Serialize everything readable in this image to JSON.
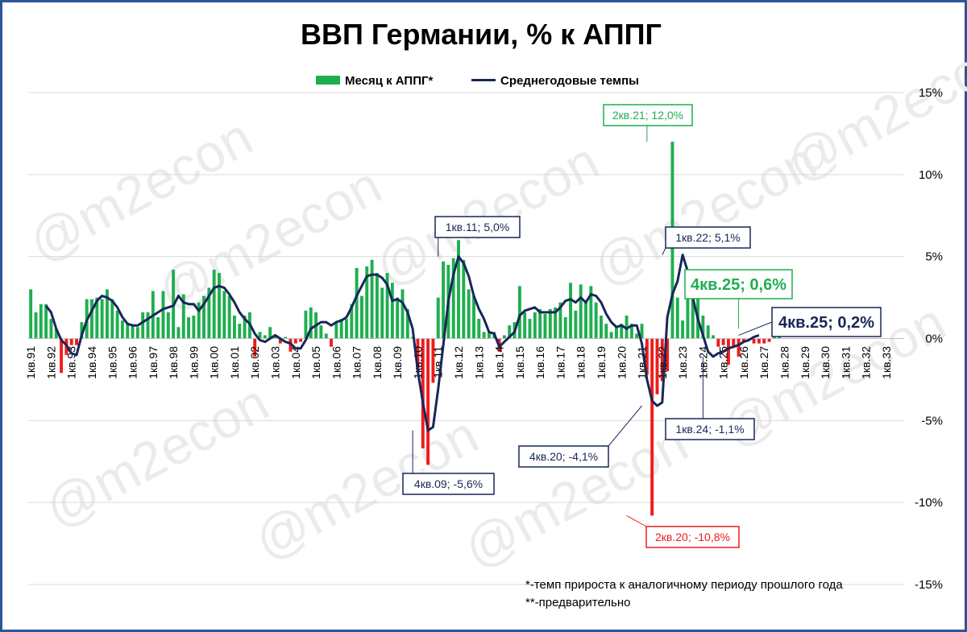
{
  "chart_data": {
    "type": "bar",
    "title": "ВВП Германии, % к АППГ",
    "legend_position": "top-center",
    "ylim": [
      -15,
      15
    ],
    "y_ticks": [
      "15%",
      "10%",
      "5%",
      "0%",
      "-5%",
      "-10%",
      "-15%"
    ],
    "y_tick_values": [
      15,
      10,
      5,
      0,
      -5,
      -10,
      -15
    ],
    "grid": true,
    "x_tick_labels": [
      "1кв.91",
      "1кв.92",
      "1кв.93",
      "1кв.94",
      "1кв.95",
      "1кв.96",
      "1кв.97",
      "1кв.98",
      "1кв.99",
      "1кв.00",
      "1кв.01",
      "1кв.02",
      "1кв.03",
      "1кв.04",
      "1кв.05",
      "1кв.06",
      "1кв.07",
      "1кв.08",
      "1кв.09",
      "1кв.10",
      "1кв.11",
      "1кв.12",
      "1кв.13",
      "1кв.14",
      "1кв.15",
      "1кв.16",
      "1кв.17",
      "1кв.18",
      "1кв.19",
      "1кв.20",
      "1кв.21",
      "1кв.22",
      "1кв.23",
      "1кв.24",
      "1кв.25",
      "1кв.26",
      "1кв.27",
      "1кв.28",
      "1кв.29",
      "1кв.30",
      "1кв.31",
      "1кв.32",
      "1кв.33"
    ],
    "x_start": "1кв.91",
    "series": [
      {
        "name": "Месяц к АППГ*",
        "kind": "bar",
        "color_positive": "#1fae4f",
        "color_negative": "#ee1c1c",
        "values": [
          3.0,
          1.6,
          2.1,
          2.1,
          1.2,
          0.6,
          -2.1,
          -1.0,
          -0.4,
          -0.4,
          1.0,
          2.4,
          2.4,
          2.5,
          2.4,
          3.0,
          2.4,
          1.7,
          1.1,
          0.9,
          0.8,
          0.7,
          1.6,
          1.6,
          2.9,
          1.3,
          2.9,
          1.6,
          4.2,
          0.7,
          2.7,
          1.3,
          1.4,
          2.2,
          2.6,
          3.1,
          4.2,
          4.0,
          2.9,
          2.6,
          1.4,
          0.9,
          1.4,
          1.6,
          -1.1,
          0.4,
          0.2,
          0.7,
          0.2,
          -0.3,
          0.1,
          -0.8,
          -0.3,
          -0.2,
          1.7,
          1.9,
          1.6,
          0.8,
          0.3,
          -0.5,
          1.0,
          1.2,
          1.2,
          2.1,
          4.3,
          2.6,
          4.4,
          4.8,
          4.0,
          3.1,
          4.0,
          3.4,
          2.5,
          3.0,
          1.8,
          0.1,
          -1.9,
          -6.7,
          -7.7,
          -2.7,
          2.5,
          4.7,
          4.5,
          4.9,
          6.0,
          4.8,
          3.0,
          2.6,
          1.2,
          0.4,
          0.4,
          0.4,
          -0.8,
          0.2,
          0.8,
          1.0,
          3.2,
          1.6,
          1.2,
          1.6,
          1.8,
          1.5,
          1.8,
          1.9,
          2.2,
          1.3,
          3.4,
          1.7,
          3.3,
          2.2,
          3.2,
          2.2,
          1.4,
          0.9,
          0.4,
          0.7,
          0.9,
          1.4,
          0.9,
          0.3,
          0.9,
          -2.2,
          -10.8,
          -3.4,
          -2.6,
          -2.0,
          12.0,
          2.5,
          1.1,
          3.5,
          2.4,
          4.0,
          1.4,
          0.8,
          0.2,
          -0.5,
          -0.4,
          -1.6,
          -0.5,
          -1.1,
          -0.2,
          -0.1,
          -0.3,
          -0.3,
          -0.3,
          -0.2,
          0.3,
          0.6
        ]
      },
      {
        "name": "Среднегодовые темпы",
        "kind": "line",
        "color": "#17275a",
        "values": [
          null,
          null,
          null,
          2.0,
          1.6,
          0.6,
          -0.1,
          -0.4,
          -0.9,
          -1.0,
          0.2,
          1.1,
          1.7,
          2.3,
          2.6,
          2.5,
          2.3,
          1.9,
          1.3,
          0.9,
          0.8,
          0.8,
          1.0,
          1.2,
          1.4,
          1.6,
          1.8,
          1.9,
          2.0,
          2.6,
          2.2,
          2.1,
          2.1,
          1.7,
          2.1,
          2.6,
          3.1,
          3.2,
          3.1,
          2.7,
          2.2,
          1.6,
          1.2,
          0.9,
          0.3,
          -0.1,
          -0.2,
          0.0,
          0.2,
          0.0,
          -0.2,
          -0.3,
          -0.6,
          -0.6,
          -0.1,
          0.6,
          0.8,
          1.0,
          1.0,
          0.8,
          1.0,
          1.1,
          1.3,
          1.9,
          2.6,
          3.2,
          3.8,
          3.9,
          3.9,
          3.7,
          3.3,
          2.3,
          2.4,
          2.2,
          1.6,
          0.6,
          -2.0,
          -3.9,
          -5.6,
          -5.4,
          -3.1,
          -0.4,
          2.3,
          3.9,
          5.0,
          4.6,
          3.8,
          2.6,
          1.8,
          1.2,
          0.4,
          0.3,
          -0.5,
          -0.2,
          0.1,
          0.4,
          1.4,
          1.7,
          1.8,
          1.9,
          1.6,
          1.6,
          1.6,
          1.6,
          1.9,
          2.3,
          2.4,
          2.2,
          2.5,
          2.2,
          2.7,
          2.6,
          2.2,
          1.5,
          1.0,
          0.7,
          0.8,
          0.6,
          0.8,
          0.8,
          -0.3,
          -2.5,
          -3.8,
          -4.1,
          -3.9,
          1.3,
          2.7,
          3.5,
          5.1,
          4.1,
          2.5,
          1.2,
          0.2,
          -0.8,
          -1.1,
          -0.9,
          -0.8,
          -0.6,
          -0.5,
          -0.4,
          -0.2,
          -0.1,
          0.1,
          0.2
        ]
      }
    ],
    "annotations": [
      {
        "text": "2кв.21; 12,0%",
        "series": "Месяц к АППГ*",
        "color": "#1fae4f"
      },
      {
        "text": "2кв.20; -10,8%",
        "series": "Месяц к АППГ*",
        "color": "#ee1c1c"
      },
      {
        "text": "4кв.25; 0,6%",
        "series": "Месяц к АППГ*",
        "color": "#1fae4f"
      },
      {
        "text": "1кв.11; 5,0%",
        "series": "Среднегодовые темпы",
        "color": "#17275a"
      },
      {
        "text": "1кв.22; 5,1%",
        "series": "Среднегодовые темпы",
        "color": "#17275a"
      },
      {
        "text": "4кв.25; 0,2%",
        "series": "Среднегодовые темпы",
        "color": "#17275a"
      },
      {
        "text": "4кв.09; -5,6%",
        "series": "Среднегодовые темпы",
        "color": "#17275a"
      },
      {
        "text": "4кв.20; -4,1%",
        "series": "Среднегодовые темпы",
        "color": "#17275a"
      },
      {
        "text": "1кв.24; -1,1%",
        "series": "Среднегодовые темпы",
        "color": "#17275a"
      }
    ]
  },
  "notes": [
    "*-темп прироста к аналогичному периоду прошлого года",
    "**-предварительно"
  ],
  "watermark": "@m2econ"
}
